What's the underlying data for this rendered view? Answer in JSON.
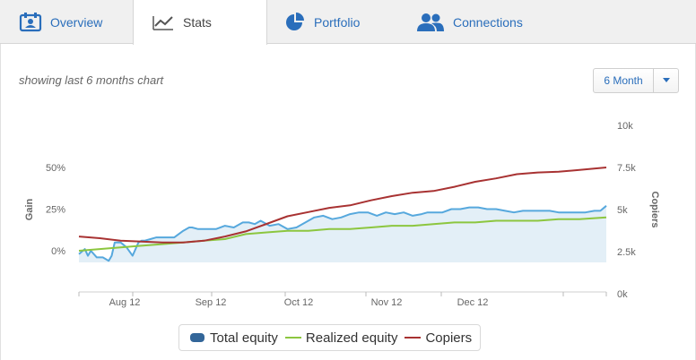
{
  "tabs": [
    {
      "label": "Overview",
      "icon": "id-card-icon",
      "active": false
    },
    {
      "label": "Stats",
      "icon": "line-chart-icon",
      "active": true
    },
    {
      "label": "Portfolio",
      "icon": "pie-chart-icon",
      "active": false
    },
    {
      "label": "Connections",
      "icon": "users-icon",
      "active": false
    }
  ],
  "subtitle": "showing last 6 months chart",
  "period_select": {
    "value": "6 Month",
    "caret_icon": "caret-down-icon"
  },
  "colors": {
    "link": "#2a6ebb",
    "total_equity": "#56a8dd",
    "total_equity_fill": "#e3eff7",
    "realized_equity": "#8cc63f",
    "copiers": "#a83232",
    "axis_text": "#666666"
  },
  "chart_data": {
    "type": "line",
    "xlabel": "",
    "x_ticks": [
      "Aug 12",
      "Sep 12",
      "Oct 12",
      "Nov 12",
      "Dec 12"
    ],
    "left_axis": {
      "label": "Gain",
      "ticks": [
        "50%",
        "25%",
        "0%"
      ],
      "values": [
        50,
        25,
        0
      ]
    },
    "right_axis": {
      "label": "Copiers",
      "ticks": [
        "10k",
        "7.5k",
        "5k",
        "2.5k",
        "0k"
      ],
      "values": [
        10000,
        7500,
        5000,
        2500,
        0
      ]
    },
    "grid": false,
    "legend_position": "bottom",
    "series": [
      {
        "name": "Total equity",
        "axis": "left",
        "type": "area",
        "x": [
          "Jul 25",
          "Jul 27",
          "Jul 28",
          "Jul 29",
          "Jul 31",
          "Aug 2",
          "Aug 4",
          "Aug 5",
          "Aug 6",
          "Aug 8",
          "Aug 10",
          "Aug 12",
          "Aug 14",
          "Aug 15",
          "Aug 16",
          "Aug 18",
          "Aug 20",
          "Aug 23",
          "Aug 26",
          "Aug 29",
          "Aug 31",
          "Sep 1",
          "Sep 3",
          "Sep 6",
          "Sep 9",
          "Sep 12",
          "Sep 15",
          "Sep 18",
          "Sep 20",
          "Sep 22",
          "Sep 24",
          "Sep 27",
          "Sep 30",
          "Oct 3",
          "Oct 6",
          "Oct 9",
          "Oct 12",
          "Oct 15",
          "Oct 18",
          "Oct 21",
          "Oct 24",
          "Oct 27",
          "Oct 30",
          "Nov 2",
          "Nov 5",
          "Nov 8",
          "Nov 11",
          "Nov 14",
          "Nov 17",
          "Nov 19",
          "Nov 21",
          "Nov 24",
          "Nov 27",
          "Nov 30",
          "Dec 3",
          "Dec 6",
          "Dec 9",
          "Dec 12",
          "Dec 15",
          "Dec 18",
          "Dec 21",
          "Dec 24",
          "Dec 27",
          "Dec 30",
          "Jan 2",
          "Jan 5",
          "Jan 8",
          "Jan 11",
          "Jan 14",
          "Jan 16",
          "Jan 18"
        ],
        "values": [
          -2,
          1,
          -3,
          0,
          -4,
          -4,
          -6,
          -3,
          5,
          5,
          2,
          -3,
          5,
          6,
          6,
          7,
          8,
          8,
          8,
          12,
          14,
          14,
          13,
          13,
          13,
          15,
          14,
          17,
          17,
          16,
          18,
          15,
          16,
          13,
          14,
          17,
          20,
          21,
          19,
          20,
          22,
          23,
          23,
          21,
          23,
          22,
          23,
          21,
          22,
          23,
          23,
          23,
          25,
          25,
          26,
          26,
          25,
          25,
          24,
          23,
          24,
          24,
          24,
          24,
          23,
          23,
          23,
          23,
          24,
          24,
          27
        ]
      },
      {
        "name": "Realized equity",
        "axis": "left",
        "type": "line",
        "x": [
          "Jul 25",
          "Aug 1",
          "Aug 8",
          "Aug 15",
          "Aug 22",
          "Aug 29",
          "Sep 5",
          "Sep 12",
          "Sep 19",
          "Sep 26",
          "Oct 3",
          "Oct 10",
          "Oct 17",
          "Oct 24",
          "Oct 31",
          "Nov 7",
          "Nov 14",
          "Nov 21",
          "Nov 28",
          "Dec 5",
          "Dec 12",
          "Dec 19",
          "Dec 26",
          "Jan 2",
          "Jan 9",
          "Jan 18"
        ],
        "values": [
          0,
          1,
          2,
          3,
          4,
          5,
          6,
          7,
          10,
          11,
          12,
          12,
          13,
          13,
          14,
          15,
          15,
          16,
          17,
          17,
          18,
          18,
          18,
          19,
          19,
          20
        ]
      },
      {
        "name": "Copiers",
        "axis": "right",
        "type": "line",
        "x": [
          "Jul 25",
          "Aug 1",
          "Aug 8",
          "Aug 15",
          "Aug 22",
          "Aug 29",
          "Sep 5",
          "Sep 12",
          "Sep 19",
          "Sep 26",
          "Oct 3",
          "Oct 10",
          "Oct 17",
          "Oct 24",
          "Oct 31",
          "Nov 7",
          "Nov 14",
          "Nov 21",
          "Nov 28",
          "Dec 5",
          "Dec 12",
          "Dec 19",
          "Dec 26",
          "Jan 2",
          "Jan 9",
          "Jan 18"
        ],
        "values": [
          3400,
          3300,
          3150,
          3100,
          3050,
          3050,
          3150,
          3400,
          3700,
          4150,
          4600,
          4850,
          5100,
          5250,
          5550,
          5800,
          6000,
          6100,
          6350,
          6650,
          6850,
          7100,
          7200,
          7250,
          7350,
          7500
        ]
      }
    ]
  }
}
